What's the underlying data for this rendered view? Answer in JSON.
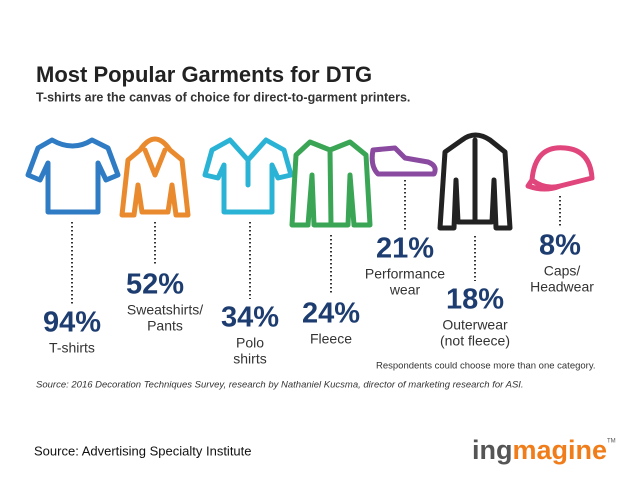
{
  "header": {
    "title": "Most Popular Garments for DTG",
    "subtitle": "T-shirts are the canvas of choice for direct-to-garment printers."
  },
  "items": [
    {
      "value": "94%",
      "label": [
        "T-shirts"
      ]
    },
    {
      "value": "52%",
      "label": [
        "Sweatshirts/",
        "Pants"
      ]
    },
    {
      "value": "34%",
      "label": [
        "Polo",
        "shirts"
      ]
    },
    {
      "value": "24%",
      "label": [
        "Fleece"
      ]
    },
    {
      "value": "21%",
      "label": [
        "Performance",
        "wear"
      ]
    },
    {
      "value": "18%",
      "label": [
        "Outerwear",
        "(not fleece)"
      ]
    },
    {
      "value": "8%",
      "label": [
        "Caps/",
        "Headwear"
      ]
    }
  ],
  "note": "Respondents could choose more than one category.",
  "source_line": "Source: 2016 Decoration Techniques Survey, research by Nathaniel Kucsma, director of marketing research for ASI.",
  "footer": {
    "source": "Source: Advertising Specialty Institute",
    "logo": [
      "ing",
      "magine"
    ],
    "trademark": "TM"
  }
}
